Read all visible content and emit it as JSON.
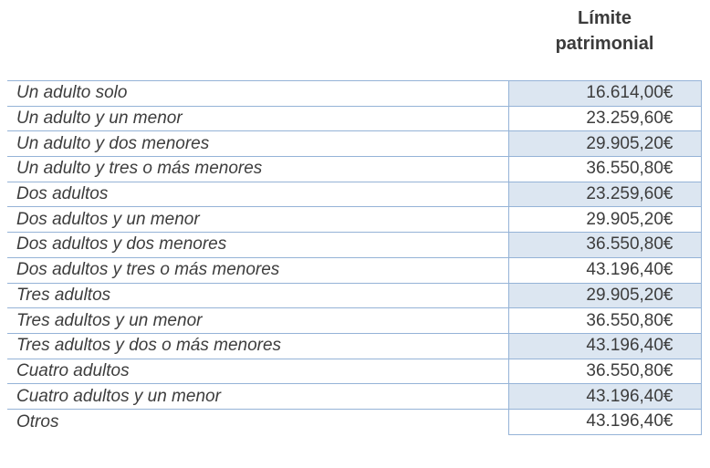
{
  "header": {
    "title": "Límite patrimonial"
  },
  "table": {
    "rows": [
      {
        "label": "Un adulto solo",
        "value": "16.614,00€"
      },
      {
        "label": "Un adulto y un menor",
        "value": "23.259,60€"
      },
      {
        "label": "Un adulto y dos menores",
        "value": "29.905,20€"
      },
      {
        "label": "Un adulto y tres o más menores",
        "value": "36.550,80€"
      },
      {
        "label": "Dos adultos",
        "value": "23.259,60€"
      },
      {
        "label": "Dos adultos y un menor",
        "value": "29.905,20€"
      },
      {
        "label": "Dos adultos y dos menores",
        "value": "36.550,80€"
      },
      {
        "label": "Dos adultos y tres o más menores",
        "value": "43.196,40€"
      },
      {
        "label": "Tres adultos",
        "value": "29.905,20€"
      },
      {
        "label": "Tres adultos y un menor",
        "value": "36.550,80€"
      },
      {
        "label": "Tres adultos y dos o más menores",
        "value": "43.196,40€"
      },
      {
        "label": "Cuatro adultos",
        "value": "36.550,80€"
      },
      {
        "label": "Cuatro adultos y un menor",
        "value": "43.196,40€"
      },
      {
        "label": "Otros",
        "value": "43.196,40€"
      }
    ]
  },
  "colors": {
    "border": "#95b3d7",
    "shaded_fill": "#dce6f1",
    "text": "#3d3d3d"
  }
}
